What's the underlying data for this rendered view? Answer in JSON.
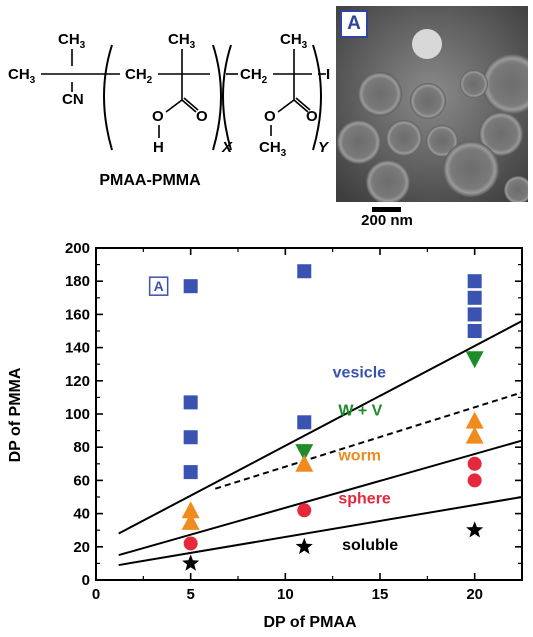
{
  "scheme": {
    "methyl": "CH",
    "methyl_sub": "3",
    "cn": "CN",
    "methylene": "CH",
    "methylene_sub": "2",
    "carbon_label": "C",
    "oxygen": "O",
    "hydrogen": "H",
    "iodine": "I",
    "repeat_x": "X",
    "repeat_y": "Y",
    "name": "PMAA-PMMA"
  },
  "tem": {
    "panel_label": "A",
    "scale_bar": "200 nm"
  },
  "chart_data": {
    "type": "scatter",
    "xlabel": "DP of PMAA",
    "ylabel": "DP of PMMA",
    "xlim": [
      0,
      22.5
    ],
    "ylim": [
      0,
      200
    ],
    "xticks": [
      0,
      5,
      10,
      15,
      20
    ],
    "yticks": [
      0,
      20,
      40,
      60,
      80,
      100,
      120,
      140,
      160,
      180,
      200
    ],
    "point_label": "A",
    "series": [
      {
        "name": "vesicle",
        "marker": "square",
        "color": "#3a52b0",
        "x": [
          5,
          5,
          5,
          5,
          11,
          11,
          20,
          20,
          20,
          20
        ],
        "y": [
          177,
          107,
          86,
          65,
          186,
          95,
          180,
          170,
          160,
          150
        ]
      },
      {
        "name": "W + V",
        "marker": "triangle-down",
        "color": "#1e8c28",
        "x": [
          11,
          20
        ],
        "y": [
          77,
          133
        ]
      },
      {
        "name": "worm",
        "marker": "hourglass",
        "color": "#f08c1e",
        "x": [
          5,
          5,
          11,
          20,
          20
        ],
        "y": [
          42,
          35,
          70,
          96,
          87
        ]
      },
      {
        "name": "sphere",
        "marker": "circle",
        "color": "#e6283c",
        "x": [
          5,
          11,
          20,
          20
        ],
        "y": [
          22,
          42,
          70,
          60
        ]
      },
      {
        "name": "soluble",
        "marker": "star",
        "color": "#000000",
        "x": [
          5,
          11,
          20
        ],
        "y": [
          10,
          20,
          30
        ]
      }
    ],
    "boundaries": [
      {
        "style": "solid",
        "x": [
          1.2,
          22.5
        ],
        "y": [
          28,
          156
        ]
      },
      {
        "style": "dashed",
        "x": [
          6.3,
          22.5
        ],
        "y": [
          55,
          113
        ]
      },
      {
        "style": "solid",
        "x": [
          1.2,
          22.5
        ],
        "y": [
          15,
          84
        ]
      },
      {
        "style": "solid",
        "x": [
          1.2,
          22.5
        ],
        "y": [
          9,
          50
        ]
      }
    ],
    "region_labels": [
      {
        "text": "vesicle",
        "color": "#3a52b0",
        "x": 12.5,
        "y": 122
      },
      {
        "text": "W + V",
        "color": "#1e8c28",
        "x": 12.8,
        "y": 99
      },
      {
        "text": "worm",
        "color": "#f08c1e",
        "x": 12.8,
        "y": 72
      },
      {
        "text": "sphere",
        "color": "#e6283c",
        "x": 12.8,
        "y": 46
      },
      {
        "text": "soluble",
        "color": "#000000",
        "x": 13.0,
        "y": 18
      }
    ]
  }
}
